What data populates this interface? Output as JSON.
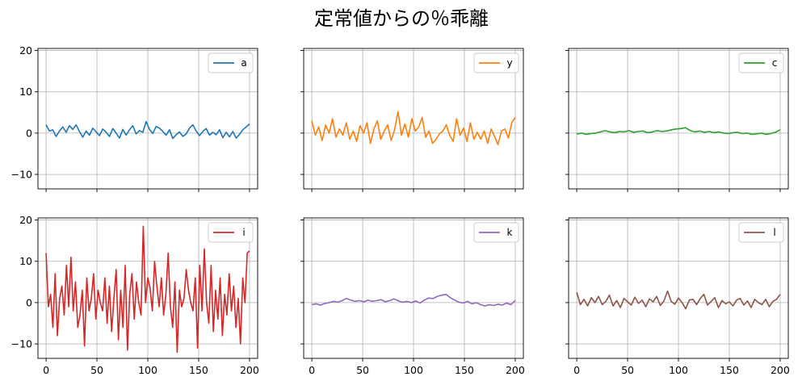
{
  "figure": {
    "title": "定常値からの％乖離"
  },
  "chart_data": {
    "type": "line",
    "layout": "2x3 grid of subplots, shared x axis per column, shared y axis per row",
    "xlim": [
      -8,
      208
    ],
    "ylim": [
      -13.5,
      20.5
    ],
    "xticks": [
      0,
      50,
      100,
      150,
      200
    ],
    "yticks": [
      -10,
      0,
      10,
      20
    ],
    "grid": true,
    "legend_position": "top-right",
    "subplots": [
      {
        "series_name": "a",
        "color": "#1f77b4",
        "approx_mean": 0,
        "approx_amplitude": 2,
        "values": [
          2.0,
          0.5,
          0.8,
          -0.8,
          0.5,
          1.5,
          0.2,
          1.8,
          0.9,
          2.0,
          0.4,
          -1.0,
          0.5,
          -0.5,
          1.2,
          0.3,
          -0.6,
          1.0,
          0.2,
          -0.8,
          1.1,
          0.0,
          -1.2,
          0.9,
          -0.5,
          0.8,
          1.8,
          -0.2,
          0.6,
          0.2,
          2.8,
          0.9,
          -0.1,
          1.6,
          1.2,
          0.4,
          -0.5,
          0.8,
          -1.3,
          -0.4,
          0.3,
          -0.8,
          -0.2,
          1.2,
          2.0,
          0.5,
          -0.6,
          0.4,
          1.1,
          -0.5,
          0.2,
          -0.4,
          0.8,
          -1.1,
          0.2,
          -0.9,
          0.4,
          -1.2,
          -0.3,
          0.8,
          1.5,
          2.2
        ]
      },
      {
        "series_name": "y",
        "color": "#ff7f0e",
        "approx_mean": 0,
        "approx_amplitude": 3,
        "values": [
          3.0,
          -0.5,
          1.5,
          -1.8,
          2.0,
          0.0,
          3.5,
          -1.0,
          1.0,
          -0.5,
          2.5,
          -1.5,
          0.5,
          -2.0,
          1.8,
          0.0,
          2.5,
          -2.5,
          1.0,
          3.0,
          -1.5,
          0.5,
          2.0,
          -1.8,
          0.8,
          5.2,
          -0.5,
          2.2,
          -1.0,
          3.5,
          0.5,
          1.5,
          3.8,
          -1.0,
          0.5,
          -2.5,
          -1.5,
          -0.2,
          0.5,
          2.0,
          -0.5,
          -2.0,
          3.5,
          -0.5,
          1.2,
          -2.0,
          2.5,
          -1.5,
          0.2,
          -1.5,
          0.5,
          -2.5,
          1.0,
          -0.8,
          -2.8,
          0.5,
          1.0,
          -1.2,
          2.5,
          3.8
        ]
      },
      {
        "series_name": "c",
        "color": "#2ca02c",
        "approx_mean": 0.3,
        "approx_amplitude": 1,
        "values": [
          -0.2,
          0.0,
          -0.3,
          -0.1,
          0.0,
          0.3,
          0.6,
          0.3,
          0.1,
          0.4,
          0.3,
          0.6,
          0.2,
          0.4,
          0.5,
          0.1,
          0.3,
          0.6,
          0.4,
          0.5,
          0.8,
          1.0,
          1.1,
          1.3,
          0.6,
          0.3,
          0.5,
          0.2,
          0.4,
          0.1,
          0.3,
          0.0,
          -0.1,
          0.1,
          0.2,
          -0.1,
          0.0,
          -0.3,
          -0.2,
          0.0,
          -0.3,
          -0.1,
          0.2,
          0.8
        ]
      },
      {
        "series_name": "i",
        "color": "#d62728",
        "approx_mean": 0,
        "approx_amplitude": 12,
        "values": [
          12.0,
          -1.0,
          2.0,
          -6.0,
          7.0,
          -8.0,
          1.0,
          4.0,
          -3.0,
          9.0,
          -1.0,
          11.0,
          -2.0,
          5.0,
          -6.0,
          -3.0,
          3.0,
          -10.5,
          6.0,
          -2.0,
          1.0,
          7.0,
          -4.0,
          3.0,
          0.0,
          -2.0,
          6.0,
          -5.0,
          4.0,
          -7.0,
          1.0,
          8.0,
          -9.0,
          3.0,
          -6.0,
          9.0,
          -11.5,
          2.0,
          7.0,
          -4.0,
          5.0,
          0.0,
          -3.0,
          18.5,
          0.0,
          6.0,
          3.5,
          -2.0,
          10.0,
          4.0,
          -1.0,
          6.0,
          -3.0,
          2.0,
          12.0,
          -1.0,
          -6.0,
          5.0,
          -12.0,
          3.0,
          -1.0,
          1.0,
          8.0,
          3.0,
          0.0,
          -2.0,
          6.0,
          -11.0,
          9.0,
          -2.0,
          13.0,
          0.0,
          -5.0,
          9.0,
          -7.0,
          3.0,
          -4.0,
          6.0,
          -8.0,
          2.0,
          -3.0,
          7.0,
          -2.0,
          4.0,
          -6.0,
          1.0,
          -10.0,
          6.0,
          0.0,
          12.0,
          12.5
        ]
      },
      {
        "series_name": "k",
        "color": "#9467bd",
        "approx_mean": 0.3,
        "approx_amplitude": 1.5,
        "values": [
          -0.5,
          -0.3,
          -0.6,
          -0.2,
          0.0,
          0.3,
          0.1,
          0.5,
          1.0,
          0.6,
          0.3,
          0.5,
          0.2,
          0.6,
          0.3,
          0.5,
          0.7,
          0.2,
          0.5,
          0.9,
          0.4,
          0.1,
          0.3,
          0.0,
          0.4,
          -0.1,
          0.6,
          1.1,
          1.0,
          1.5,
          1.8,
          2.0,
          1.2,
          0.6,
          0.1,
          -0.1,
          0.3,
          -0.3,
          0.0,
          -0.5,
          -0.8,
          -0.5,
          -0.7,
          -0.4,
          -0.6,
          -0.1,
          -0.5,
          0.5
        ]
      },
      {
        "series_name": "l",
        "color": "#8c564b",
        "approx_mean": 0.3,
        "approx_amplitude": 2,
        "values": [
          2.5,
          -0.5,
          0.8,
          -0.8,
          1.2,
          0.0,
          1.5,
          -0.5,
          0.3,
          1.8,
          -0.8,
          0.5,
          -1.2,
          1.0,
          0.2,
          -0.6,
          1.3,
          -0.2,
          0.6,
          -1.0,
          0.9,
          0.2,
          1.5,
          -0.7,
          0.4,
          2.8,
          0.3,
          -0.4,
          1.1,
          0.0,
          -1.5,
          0.6,
          0.8,
          -0.5,
          1.0,
          2.0,
          -0.6,
          0.3,
          1.2,
          -1.2,
          0.5,
          -0.3,
          0.2,
          -0.8,
          0.6,
          1.0,
          -0.6,
          0.4,
          -1.2,
          0.8,
          0.0,
          -0.5,
          0.8,
          -1.0,
          0.3,
          0.8,
          2.0
        ]
      }
    ]
  }
}
